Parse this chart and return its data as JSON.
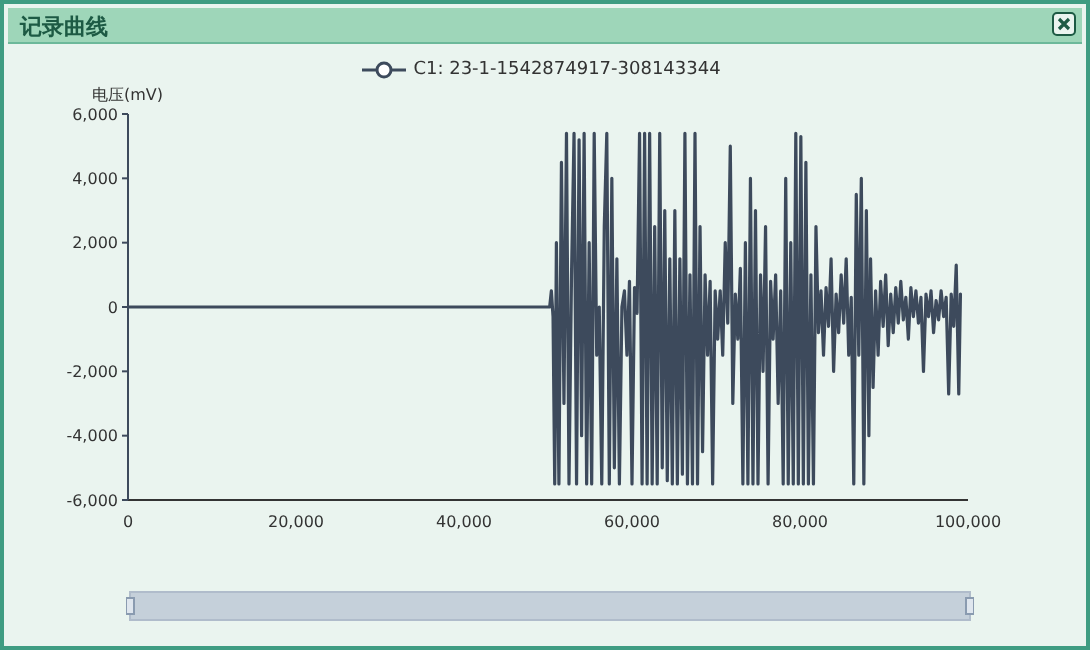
{
  "chart_data": {
    "type": "line",
    "title": "记录曲线",
    "ylabel": "电压(mV)",
    "legend": "top",
    "grid": false,
    "xlim": [
      0,
      100000
    ],
    "xticks": [
      {
        "value": 0,
        "label": "0"
      },
      {
        "value": 20000,
        "label": "20,000"
      },
      {
        "value": 40000,
        "label": "40,000"
      },
      {
        "value": 60000,
        "label": "60,000"
      },
      {
        "value": 80000,
        "label": "80,000"
      },
      {
        "value": 100000,
        "label": "100,000"
      }
    ],
    "ylim": [
      -6000,
      6000
    ],
    "yticks": [
      {
        "value": -6000,
        "label": "-6,000"
      },
      {
        "value": -4000,
        "label": "-4,000"
      },
      {
        "value": -2000,
        "label": "-2,000"
      },
      {
        "value": 0,
        "label": "0"
      },
      {
        "value": 2000,
        "label": "2,000"
      },
      {
        "value": 4000,
        "label": "4,000"
      },
      {
        "value": 6000,
        "label": "6,000"
      }
    ],
    "series": [
      {
        "name": "C1: 23-1-1542874917-308143344",
        "color": "#3d4a5c",
        "x": [
          0,
          50000,
          50200,
          50400,
          50600,
          50800,
          51000,
          51300,
          51600,
          51900,
          52200,
          52500,
          52800,
          53100,
          53400,
          53700,
          54000,
          54300,
          54600,
          54900,
          55200,
          55500,
          55800,
          56100,
          56400,
          56700,
          57000,
          57300,
          57600,
          57900,
          58200,
          58500,
          58800,
          59100,
          59400,
          59700,
          60000,
          60300,
          60600,
          60900,
          61200,
          61500,
          61800,
          62100,
          62400,
          62700,
          63000,
          63300,
          63600,
          63900,
          64200,
          64500,
          64800,
          65100,
          65400,
          65700,
          66000,
          66300,
          66600,
          66900,
          67200,
          67500,
          67800,
          68100,
          68400,
          68700,
          69000,
          69300,
          69600,
          69900,
          70200,
          70500,
          70800,
          71100,
          71400,
          71700,
          72000,
          72300,
          72600,
          72900,
          73200,
          73500,
          73800,
          74100,
          74400,
          74700,
          75000,
          75300,
          75600,
          75900,
          76200,
          76500,
          76800,
          77100,
          77400,
          77700,
          78000,
          78300,
          78600,
          78900,
          79200,
          79500,
          79800,
          80100,
          80400,
          80700,
          81000,
          81300,
          81600,
          81900,
          82200,
          82500,
          82800,
          83100,
          83400,
          83700,
          84000,
          84300,
          84600,
          84900,
          85200,
          85500,
          85800,
          86100,
          86400,
          86700,
          87000,
          87300,
          87600,
          87900,
          88200,
          88400,
          88700,
          89000,
          89300,
          89600,
          89900,
          90200,
          90500,
          90800,
          91100,
          91400,
          91700,
          92000,
          92300,
          92600,
          92900,
          93200,
          93500,
          93800,
          94100,
          94400,
          94700,
          95000,
          95300,
          95600,
          95900,
          96200,
          96500,
          96800,
          97100,
          97400,
          97700,
          98000,
          98300,
          98600,
          98900,
          99100
        ],
        "values": [
          0,
          0,
          0,
          500,
          -300,
          -5500,
          2000,
          -5500,
          4500,
          -3000,
          5400,
          -5500,
          1000,
          5400,
          -5500,
          5200,
          -4000,
          5400,
          -5500,
          2000,
          -5500,
          5400,
          -1500,
          0,
          -5500,
          2500,
          5400,
          -5500,
          4000,
          -5000,
          1500,
          -5500,
          0,
          500,
          -1500,
          800,
          -5500,
          600,
          -200,
          5400,
          -5500,
          5400,
          -5500,
          5400,
          -5500,
          2500,
          -5500,
          5400,
          -5000,
          3000,
          -5400,
          1500,
          -5500,
          3000,
          -5500,
          1500,
          -5200,
          5400,
          -5500,
          1000,
          -5500,
          5400,
          -5500,
          2500,
          -4500,
          1000,
          -1500,
          800,
          -5500,
          500,
          -1000,
          500,
          -1500,
          2000,
          -500,
          5000,
          -3000,
          400,
          -1000,
          1200,
          -5500,
          2000,
          -5500,
          4000,
          -5500,
          3000,
          -5500,
          1000,
          -2000,
          2500,
          -5500,
          800,
          -1000,
          1000,
          -3000,
          500,
          -5500,
          4000,
          -5500,
          2000,
          -5500,
          5400,
          -5500,
          5300,
          -5500,
          4500,
          -5500,
          1000,
          -5500,
          2500,
          -800,
          500,
          -1500,
          600,
          -600,
          1500,
          -2000,
          400,
          -800,
          1000,
          -500,
          1500,
          -1500,
          300,
          -5500,
          3500,
          -1500,
          4000,
          -5500,
          3000,
          -4000,
          1500,
          -2500,
          500,
          -1500,
          800,
          -600,
          1000,
          -1200,
          400,
          -800,
          600,
          -500,
          800,
          -400,
          300,
          -1000,
          600,
          -300,
          500,
          -500,
          300,
          -2000,
          400,
          -300,
          500,
          -800,
          200,
          -400,
          500,
          -300,
          300,
          -2700,
          400,
          -600,
          1300,
          -2700,
          400
        ]
      }
    ]
  }
}
